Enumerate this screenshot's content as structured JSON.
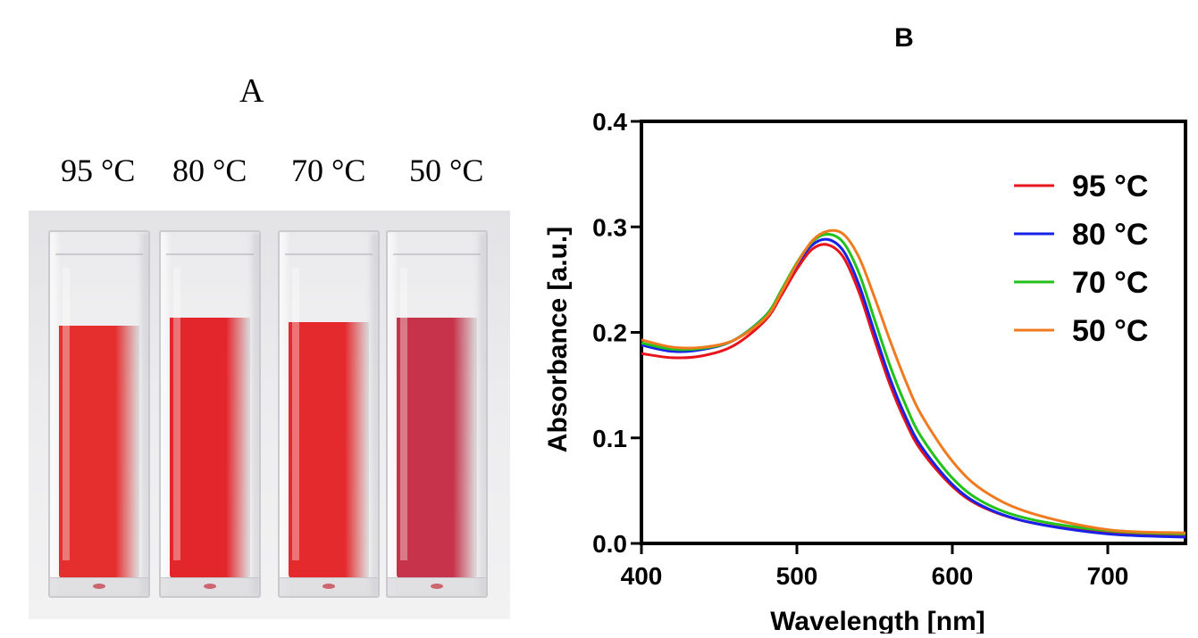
{
  "panel_a": {
    "letter": "A",
    "labels": [
      "95 °C",
      "80 °C",
      "70 °C",
      "50 °C"
    ],
    "liquid_colors": [
      "#e52e2e",
      "#e3262c",
      "#e42a2d",
      "#c7334a"
    ]
  },
  "chart_data": {
    "type": "line",
    "panel_label": "B",
    "xlabel": "Wavelength [nm]",
    "ylabel": "Absorbance [a.u.]",
    "xlim": [
      400,
      750
    ],
    "ylim": [
      0.0,
      0.4
    ],
    "x_ticks": [
      400,
      500,
      600,
      700
    ],
    "y_ticks": [
      0.0,
      0.1,
      0.2,
      0.3,
      0.4
    ],
    "x_tick_labels": [
      "400",
      "500",
      "600",
      "700"
    ],
    "y_tick_labels": [
      "0.0",
      "0.1",
      "0.2",
      "0.3",
      "0.4"
    ],
    "legend_position": "top-right",
    "grid": false,
    "x": [
      400,
      420,
      440,
      460,
      480,
      490,
      500,
      510,
      520,
      530,
      540,
      550,
      560,
      570,
      580,
      600,
      620,
      650,
      700,
      750
    ],
    "series": [
      {
        "name": "95 °C",
        "color": "#e8141b",
        "values": [
          0.18,
          0.176,
          0.178,
          0.188,
          0.212,
          0.235,
          0.26,
          0.279,
          0.283,
          0.271,
          0.238,
          0.193,
          0.15,
          0.115,
          0.088,
          0.054,
          0.034,
          0.02,
          0.01,
          0.007
        ]
      },
      {
        "name": "80 °C",
        "color": "#1722e8",
        "values": [
          0.188,
          0.182,
          0.184,
          0.193,
          0.216,
          0.239,
          0.264,
          0.283,
          0.288,
          0.277,
          0.245,
          0.2,
          0.156,
          0.12,
          0.092,
          0.056,
          0.035,
          0.02,
          0.009,
          0.006
        ]
      },
      {
        "name": "70 °C",
        "color": "#22c21c",
        "values": [
          0.19,
          0.184,
          0.185,
          0.193,
          0.216,
          0.24,
          0.266,
          0.286,
          0.293,
          0.285,
          0.256,
          0.212,
          0.168,
          0.131,
          0.101,
          0.062,
          0.039,
          0.023,
          0.012,
          0.009
        ]
      },
      {
        "name": "50 °C",
        "color": "#f07a1f",
        "values": [
          0.193,
          0.186,
          0.186,
          0.193,
          0.214,
          0.238,
          0.265,
          0.287,
          0.296,
          0.293,
          0.271,
          0.233,
          0.192,
          0.154,
          0.122,
          0.078,
          0.05,
          0.029,
          0.013,
          0.01
        ]
      }
    ]
  }
}
